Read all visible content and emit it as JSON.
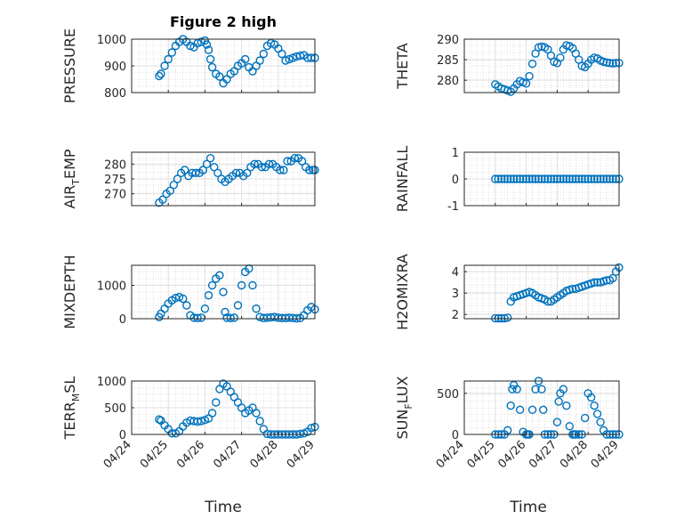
{
  "figure": {
    "title": "Figure 2 high",
    "marker_color": "#0072BD",
    "x_tick_labels": [
      "04/24",
      "04/25",
      "04/26",
      "04/27",
      "04/28",
      "04/29"
    ],
    "x_label": "Time"
  },
  "chart_data": [
    {
      "type": "scatter",
      "ylabel": "PRESSURE",
      "title": "Figure 2 high",
      "xlim": [
        0,
        5
      ],
      "ylim": [
        800,
        1000
      ],
      "yticks": [
        800,
        900,
        1000
      ],
      "grid": true,
      "marker": "circle-open",
      "series": [
        {
          "x": [
            0.75,
            0.8,
            0.9,
            1.0,
            1.1,
            1.2,
            1.3,
            1.4,
            1.5,
            1.6,
            1.7,
            1.8,
            1.9,
            2.0,
            2.05,
            2.1,
            2.15,
            2.2,
            2.3,
            2.4,
            2.5,
            2.6,
            2.7,
            2.8,
            2.9,
            3.0,
            3.1,
            3.2,
            3.3,
            3.4,
            3.5,
            3.6,
            3.7,
            3.8,
            3.9,
            4.0,
            4.1,
            4.2,
            4.3,
            4.4,
            4.5,
            4.6,
            4.7,
            4.8,
            4.9,
            5.0
          ],
          "y": [
            862,
            870,
            900,
            925,
            950,
            975,
            990,
            1000,
            990,
            975,
            970,
            985,
            990,
            995,
            980,
            960,
            925,
            895,
            870,
            860,
            835,
            850,
            870,
            880,
            900,
            910,
            925,
            895,
            880,
            900,
            920,
            945,
            975,
            985,
            980,
            965,
            945,
            920,
            925,
            930,
            935,
            938,
            940,
            930,
            930,
            930
          ]
        }
      ]
    },
    {
      "type": "scatter",
      "ylabel": "THETA",
      "xlim": [
        0,
        5
      ],
      "ylim": [
        277,
        290
      ],
      "yticks": [
        280,
        285,
        290
      ],
      "grid": true,
      "marker": "circle-open",
      "series": [
        {
          "x": [
            1.0,
            1.1,
            1.2,
            1.3,
            1.4,
            1.5,
            1.6,
            1.7,
            1.8,
            1.9,
            2.0,
            2.1,
            2.2,
            2.3,
            2.4,
            2.5,
            2.6,
            2.7,
            2.8,
            2.9,
            3.0,
            3.1,
            3.2,
            3.3,
            3.4,
            3.5,
            3.6,
            3.7,
            3.8,
            3.9,
            4.0,
            4.1,
            4.2,
            4.3,
            4.4,
            4.5,
            4.6,
            4.7,
            4.8,
            4.9,
            5.0
          ],
          "y": [
            279,
            278.5,
            278,
            277.8,
            277.5,
            277.2,
            278,
            279,
            279.8,
            279.5,
            279.2,
            281,
            284,
            286.5,
            288,
            288.2,
            288,
            287.5,
            286,
            284.5,
            284.2,
            285.5,
            287.5,
            288.5,
            288.3,
            287.8,
            286.5,
            285,
            283.5,
            283.2,
            284,
            285,
            285.5,
            285.3,
            284.8,
            284.5,
            284.3,
            284.2,
            284.1,
            284.2,
            284.2
          ]
        }
      ]
    },
    {
      "type": "scatter",
      "ylabel": "AIR_TEMP",
      "xlim": [
        0,
        5
      ],
      "ylim": [
        266,
        284
      ],
      "yticks": [
        270,
        275,
        280
      ],
      "grid": true,
      "marker": "circle-open",
      "series": [
        {
          "x": [
            0.75,
            0.85,
            0.95,
            1.05,
            1.15,
            1.25,
            1.35,
            1.45,
            1.55,
            1.65,
            1.75,
            1.85,
            1.95,
            2.05,
            2.15,
            2.25,
            2.35,
            2.45,
            2.55,
            2.65,
            2.75,
            2.85,
            2.95,
            3.05,
            3.15,
            3.25,
            3.35,
            3.45,
            3.55,
            3.65,
            3.75,
            3.85,
            3.95,
            4.05,
            4.15,
            4.25,
            4.35,
            4.45,
            4.55,
            4.65,
            4.75,
            4.85,
            4.95,
            5.0
          ],
          "y": [
            267,
            268,
            270,
            271,
            273,
            275,
            277,
            278,
            276,
            277,
            277,
            277,
            278,
            280,
            282,
            279,
            277,
            275,
            274,
            275,
            276,
            277,
            277,
            276,
            277,
            279,
            280,
            280,
            279,
            279,
            280,
            280,
            279,
            278,
            278,
            281,
            281,
            282,
            282,
            281,
            279,
            278,
            278,
            278
          ]
        }
      ]
    },
    {
      "type": "scatter",
      "ylabel": "RAINFALL",
      "xlim": [
        0,
        5
      ],
      "ylim": [
        -1,
        1
      ],
      "yticks": [
        -1,
        0,
        1
      ],
      "grid": true,
      "marker": "circle-open",
      "series": [
        {
          "x": [
            1.0,
            1.1,
            1.2,
            1.3,
            1.4,
            1.5,
            1.6,
            1.7,
            1.8,
            1.9,
            2.0,
            2.1,
            2.2,
            2.3,
            2.4,
            2.5,
            2.6,
            2.7,
            2.8,
            2.9,
            3.0,
            3.1,
            3.2,
            3.3,
            3.4,
            3.5,
            3.6,
            3.7,
            3.8,
            3.9,
            4.0,
            4.1,
            4.2,
            4.3,
            4.4,
            4.5,
            4.6,
            4.7,
            4.8,
            4.9,
            5.0
          ],
          "y": [
            0,
            0,
            0,
            0,
            0,
            0,
            0,
            0,
            0,
            0,
            0,
            0,
            0,
            0,
            0,
            0,
            0,
            0,
            0,
            0,
            0,
            0,
            0,
            0,
            0,
            0,
            0,
            0,
            0,
            0,
            0,
            0,
            0,
            0,
            0,
            0,
            0,
            0,
            0,
            0,
            0
          ]
        }
      ]
    },
    {
      "type": "scatter",
      "ylabel": "MIXDEPTH",
      "xlim": [
        0,
        5
      ],
      "ylim": [
        0,
        1600
      ],
      "yticks": [
        0,
        1000
      ],
      "grid": true,
      "marker": "circle-open",
      "series": [
        {
          "x": [
            0.75,
            0.8,
            0.9,
            1.0,
            1.1,
            1.2,
            1.3,
            1.4,
            1.5,
            1.6,
            1.7,
            1.8,
            1.9,
            2.0,
            2.1,
            2.2,
            2.3,
            2.4,
            2.5,
            2.55,
            2.6,
            2.7,
            2.8,
            2.9,
            3.0,
            3.1,
            3.2,
            3.3,
            3.4,
            3.5,
            3.6,
            3.7,
            3.8,
            3.9,
            4.0,
            4.1,
            4.2,
            4.3,
            4.4,
            4.5,
            4.6,
            4.7,
            4.8,
            4.9,
            5.0
          ],
          "y": [
            50,
            150,
            300,
            450,
            550,
            620,
            650,
            600,
            400,
            100,
            30,
            20,
            30,
            300,
            700,
            1000,
            1200,
            1300,
            800,
            200,
            30,
            20,
            30,
            400,
            1000,
            1400,
            1500,
            1000,
            300,
            50,
            20,
            30,
            40,
            50,
            30,
            20,
            20,
            30,
            20,
            10,
            20,
            100,
            250,
            350,
            280
          ]
        }
      ]
    },
    {
      "type": "scatter",
      "ylabel": "H2OMIXRA",
      "xlim": [
        0,
        5
      ],
      "ylim": [
        1.8,
        4.3
      ],
      "yticks": [
        2,
        3,
        4
      ],
      "grid": true,
      "marker": "circle-open",
      "series": [
        {
          "x": [
            1.0,
            1.1,
            1.2,
            1.3,
            1.4,
            1.5,
            1.6,
            1.7,
            1.8,
            1.9,
            2.0,
            2.1,
            2.2,
            2.3,
            2.4,
            2.5,
            2.6,
            2.7,
            2.8,
            2.9,
            3.0,
            3.1,
            3.2,
            3.3,
            3.4,
            3.5,
            3.6,
            3.7,
            3.8,
            3.9,
            4.0,
            4.1,
            4.2,
            4.3,
            4.4,
            4.5,
            4.6,
            4.7,
            4.8,
            4.9,
            5.0
          ],
          "y": [
            1.82,
            1.82,
            1.82,
            1.82,
            1.85,
            2.6,
            2.8,
            2.85,
            2.9,
            2.95,
            3.0,
            3.05,
            3.0,
            2.9,
            2.8,
            2.75,
            2.7,
            2.6,
            2.6,
            2.7,
            2.8,
            2.9,
            3.0,
            3.1,
            3.15,
            3.2,
            3.2,
            3.25,
            3.3,
            3.35,
            3.4,
            3.45,
            3.5,
            3.5,
            3.5,
            3.55,
            3.6,
            3.6,
            3.7,
            4.0,
            4.2
          ]
        }
      ]
    },
    {
      "type": "scatter",
      "ylabel": "TERR_MSL",
      "xlim": [
        0,
        5
      ],
      "ylim": [
        0,
        1000
      ],
      "yticks": [
        0,
        500,
        1000
      ],
      "grid": true,
      "marker": "circle-open",
      "series": [
        {
          "x": [
            0.75,
            0.8,
            0.9,
            1.0,
            1.1,
            1.2,
            1.3,
            1.4,
            1.5,
            1.6,
            1.7,
            1.8,
            1.9,
            2.0,
            2.1,
            2.2,
            2.3,
            2.4,
            2.5,
            2.6,
            2.7,
            2.8,
            2.9,
            3.0,
            3.1,
            3.2,
            3.3,
            3.4,
            3.5,
            3.6,
            3.7,
            3.8,
            3.9,
            4.0,
            4.1,
            4.2,
            4.3,
            4.4,
            4.5,
            4.6,
            4.7,
            4.8,
            4.9,
            5.0
          ],
          "y": [
            280,
            260,
            170,
            100,
            20,
            20,
            60,
            150,
            220,
            260,
            250,
            240,
            250,
            270,
            300,
            400,
            600,
            850,
            950,
            900,
            800,
            700,
            600,
            500,
            400,
            450,
            500,
            400,
            250,
            100,
            10,
            0,
            0,
            0,
            0,
            0,
            0,
            0,
            0,
            10,
            20,
            50,
            120,
            140
          ]
        }
      ]
    },
    {
      "type": "scatter",
      "ylabel": "SUN_FLUX",
      "xlim": [
        0,
        5
      ],
      "ylim": [
        0,
        650
      ],
      "yticks": [
        0,
        500
      ],
      "grid": true,
      "marker": "circle-open",
      "series": [
        {
          "x": [
            1.0,
            1.1,
            1.2,
            1.3,
            1.4,
            1.5,
            1.55,
            1.6,
            1.7,
            1.8,
            1.9,
            2.0,
            2.05,
            2.1,
            2.2,
            2.3,
            2.4,
            2.5,
            2.55,
            2.6,
            2.7,
            2.8,
            2.9,
            3.0,
            3.05,
            3.1,
            3.2,
            3.3,
            3.4,
            3.5,
            3.55,
            3.6,
            3.7,
            3.8,
            3.9,
            4.0,
            4.1,
            4.2,
            4.3,
            4.4,
            4.5,
            4.6,
            4.7,
            4.8,
            4.9,
            5.0
          ],
          "y": [
            0,
            0,
            0,
            0,
            50,
            350,
            550,
            600,
            550,
            300,
            30,
            0,
            0,
            0,
            300,
            550,
            650,
            550,
            300,
            0,
            0,
            0,
            0,
            150,
            400,
            500,
            550,
            350,
            100,
            0,
            0,
            0,
            0,
            0,
            200,
            500,
            450,
            350,
            250,
            150,
            50,
            0,
            0,
            0,
            0,
            0
          ]
        }
      ]
    }
  ]
}
